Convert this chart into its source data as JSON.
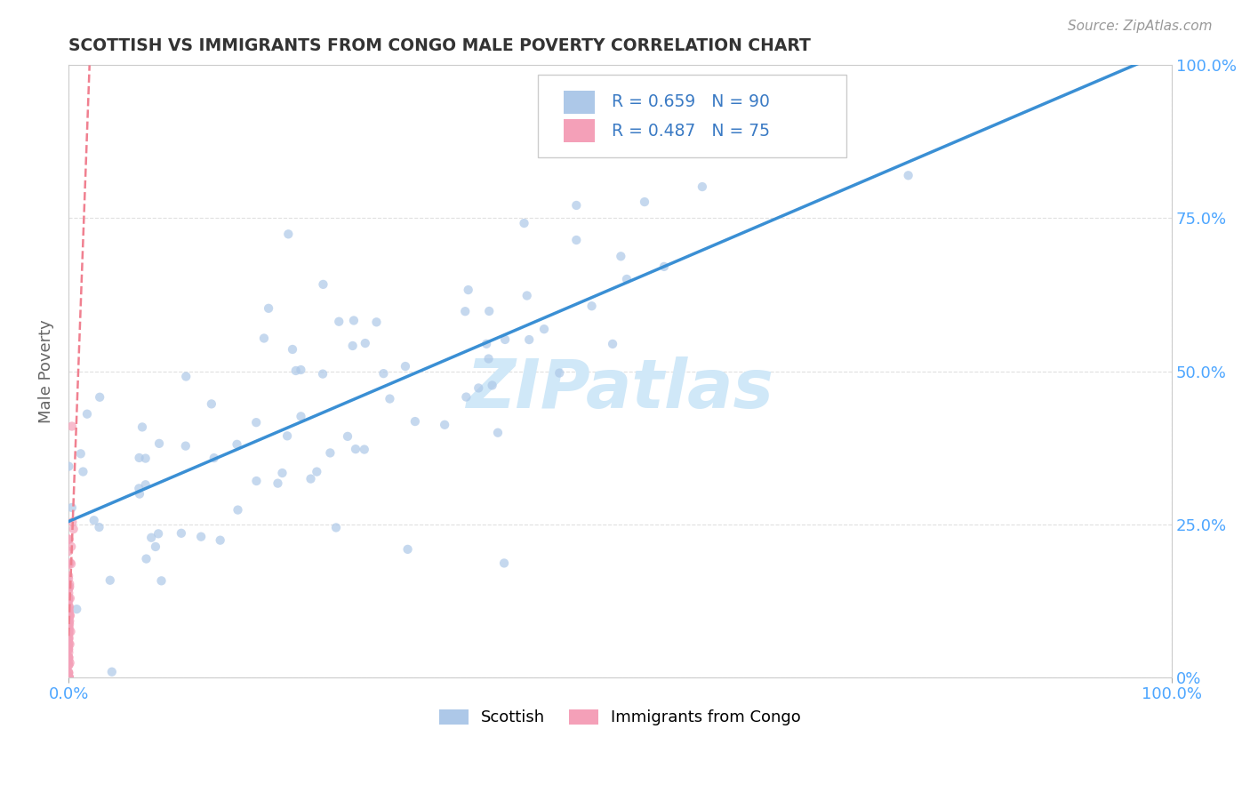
{
  "title": "SCOTTISH VS IMMIGRANTS FROM CONGO MALE POVERTY CORRELATION CHART",
  "source": "Source: ZipAtlas.com",
  "ylabel": "Male Poverty",
  "xlim": [
    0,
    1
  ],
  "ylim": [
    0,
    1
  ],
  "ytick_positions": [
    0,
    0.25,
    0.5,
    0.75,
    1.0
  ],
  "right_ytick_labels": [
    "0%",
    "25.0%",
    "50.0%",
    "75.0%",
    "100.0%"
  ],
  "scatter_color_1": "#adc8e8",
  "scatter_color_2": "#f4a0b8",
  "line_color_1": "#3a8fd4",
  "line_color_2": "#f08090",
  "watermark": "ZIPatlas",
  "watermark_color": "#d0e8f8",
  "background_color": "#ffffff",
  "grid_color": "#cccccc",
  "title_color": "#333333",
  "label_color": "#4da6ff",
  "legend_r_color": "#3a7ac4",
  "right_ytick_color": "#4da6ff",
  "seed1": 12,
  "seed2": 7
}
